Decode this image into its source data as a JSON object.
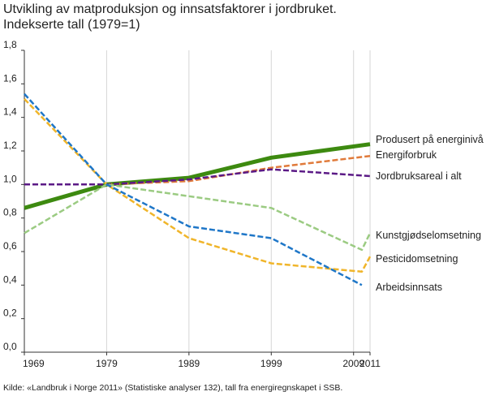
{
  "title_line1": "Utvikling av matproduksjon og innsatsfaktorer i jordbruket.",
  "title_line2": "Indekserte tall (1979=1)",
  "source": "Kilde: «Landbruk i Norge 2011» (Statistiske analyser 132), tall fra energiregnskapet i SSB.",
  "chart_data": {
    "type": "line",
    "title": "Utvikling av matproduksjon og innsatsfaktorer i jordbruket. Indekserte tall (1979=1)",
    "xlabel": "",
    "ylabel": "",
    "xlim": [
      1969,
      2011
    ],
    "ylim": [
      0,
      1.8
    ],
    "x_ticks": [
      1969,
      1979,
      1989,
      1999,
      2009,
      2011
    ],
    "y_ticks": [
      "0,0",
      "0,2",
      "0,4",
      "0,6",
      "0,8",
      "1,0",
      "1,2",
      "1,4",
      "1,6",
      "1,8"
    ],
    "grid": "vertical",
    "legend": "end-labels",
    "series": [
      {
        "name": "Produsert på energinivå",
        "color": "#3d8a10",
        "style": "solid",
        "width": 5,
        "x": [
          1969,
          1979,
          1989,
          1999,
          2011
        ],
        "y": [
          0.86,
          1.0,
          1.04,
          1.16,
          1.24
        ]
      },
      {
        "name": "Energiforbruk",
        "color": "#e07a3a",
        "style": "dashed",
        "width": 2.5,
        "x": [
          1979,
          1989,
          1999,
          2011
        ],
        "y": [
          1.0,
          1.02,
          1.1,
          1.17
        ]
      },
      {
        "name": "Jordbruksareal i alt",
        "color": "#5b1a86",
        "style": "dashed",
        "width": 2.5,
        "x": [
          1969,
          1979,
          1989,
          1999,
          2011
        ],
        "y": [
          1.0,
          1.0,
          1.03,
          1.09,
          1.05
        ]
      },
      {
        "name": "Kunstgjødselomsetning",
        "color": "#9bcb82",
        "style": "dashed",
        "width": 2.5,
        "x": [
          1969,
          1979,
          1989,
          1999,
          2010,
          2011
        ],
        "y": [
          0.71,
          1.0,
          0.93,
          0.86,
          0.61,
          0.71
        ]
      },
      {
        "name": "Pesticidomsetning",
        "color": "#f0b52a",
        "style": "dashed",
        "width": 2.5,
        "x": [
          1969,
          1979,
          1989,
          1999,
          2010,
          2011
        ],
        "y": [
          1.51,
          1.0,
          0.68,
          0.53,
          0.48,
          0.57
        ]
      },
      {
        "name": "Arbeidsinnsats",
        "color": "#1f77c8",
        "style": "dashed",
        "width": 2.5,
        "x": [
          1969,
          1979,
          1989,
          1999,
          2010
        ],
        "y": [
          1.54,
          1.0,
          0.75,
          0.68,
          0.4
        ]
      }
    ]
  }
}
